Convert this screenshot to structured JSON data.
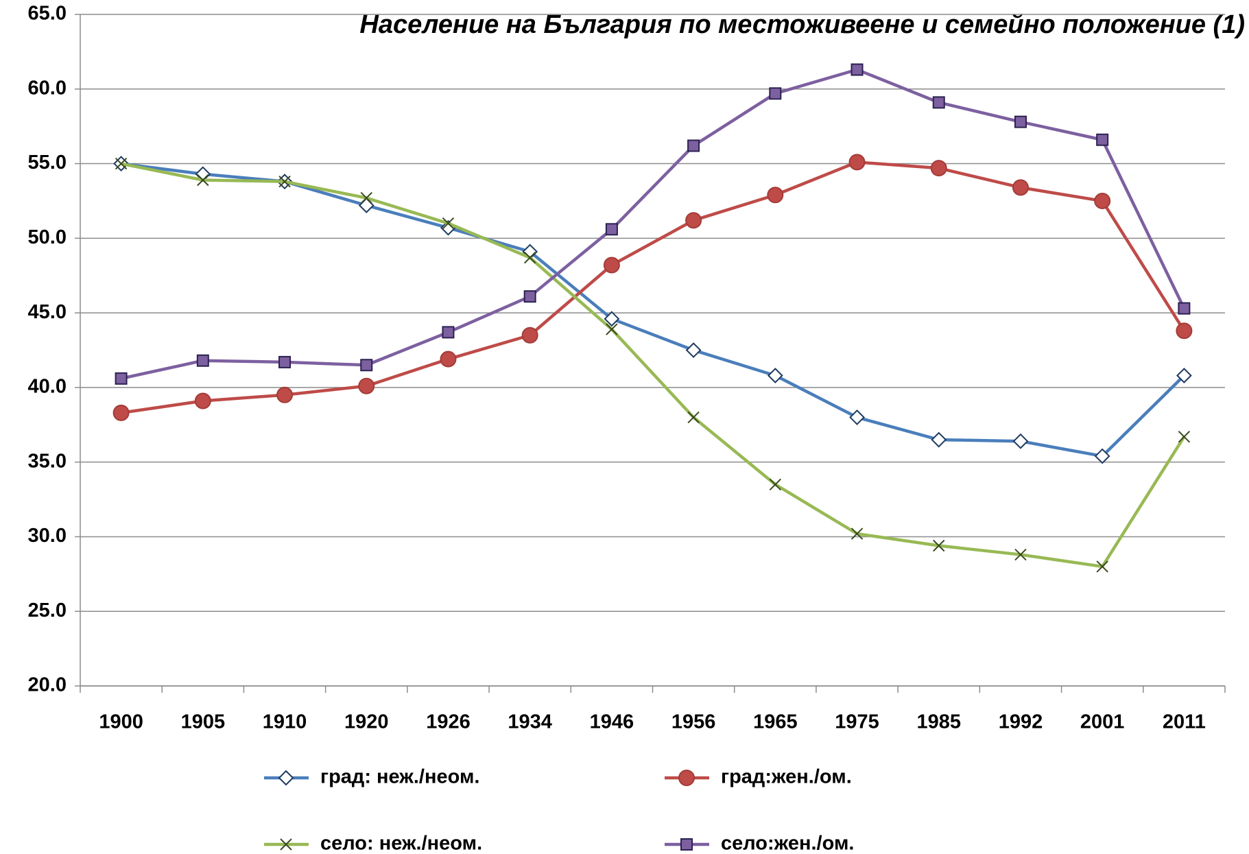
{
  "chart_data": {
    "type": "line",
    "title": "Население на България по местоживеене и семейно положение (1)",
    "categories": [
      "1900",
      "1905",
      "1910",
      "1920",
      "1926",
      "1934",
      "1946",
      "1956",
      "1965",
      "1975",
      "1985",
      "1992",
      "2001",
      "2011"
    ],
    "series": [
      {
        "name": "град: неж./неом.",
        "color": "#4a7ebb",
        "marker": "diamond",
        "values": [
          55.0,
          54.3,
          53.8,
          52.2,
          50.7,
          49.1,
          44.6,
          42.5,
          40.8,
          38.0,
          36.5,
          36.4,
          35.4,
          40.8
        ]
      },
      {
        "name": "град:жен./ом.",
        "color": "#be4b48",
        "marker": "circle",
        "values": [
          38.3,
          39.1,
          39.5,
          40.1,
          41.9,
          43.5,
          48.2,
          51.2,
          52.9,
          55.1,
          54.7,
          53.4,
          52.5,
          43.8
        ]
      },
      {
        "name": "село: неж./неом.",
        "color": "#98b954",
        "marker": "x",
        "values": [
          55.0,
          53.9,
          53.8,
          52.7,
          51.0,
          48.7,
          43.9,
          38.0,
          33.5,
          30.2,
          29.4,
          28.8,
          28.0,
          36.7
        ]
      },
      {
        "name": "село:жен./ом.",
        "color": "#7d60a0",
        "marker": "square",
        "values": [
          40.6,
          41.8,
          41.7,
          41.5,
          43.7,
          46.1,
          50.6,
          56.2,
          59.7,
          61.3,
          59.1,
          57.8,
          56.6,
          45.3
        ]
      }
    ],
    "ylim": [
      20,
      65
    ],
    "yticks": [
      {
        "value": 20,
        "label": "20.0"
      },
      {
        "value": 25,
        "label": "25.0"
      },
      {
        "value": 30,
        "label": "30.0"
      },
      {
        "value": 35,
        "label": "35.0"
      },
      {
        "value": 40,
        "label": "40.0"
      },
      {
        "value": 45,
        "label": "45.0"
      },
      {
        "value": 50,
        "label": "50.0"
      },
      {
        "value": 55,
        "label": "55.0"
      },
      {
        "value": 60,
        "label": "60.0"
      },
      {
        "value": 65,
        "label": "65.0"
      }
    ],
    "grid": true,
    "legend": "bottom"
  }
}
